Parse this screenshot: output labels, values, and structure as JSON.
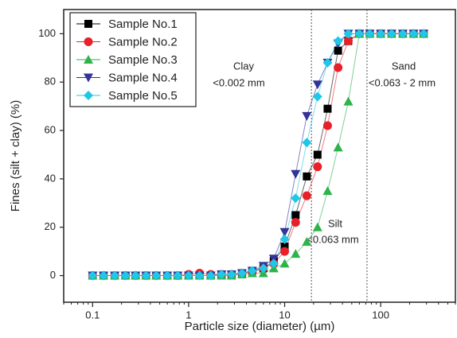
{
  "chart_data": {
    "type": "line",
    "xscale": "log",
    "xlabel": "Particle size (diameter) (µm)",
    "ylabel": "Fines (silt + clay) (%)",
    "xlim": [
      0.05,
      600
    ],
    "ylim": [
      -11,
      110
    ],
    "xticks": [
      0.1,
      1,
      10,
      100
    ],
    "yticks": [
      0,
      20,
      40,
      60,
      80,
      100
    ],
    "vlines": [
      19,
      72
    ],
    "annotations": [
      "Clay",
      "<0.002 mm",
      "Silt",
      "<0.063 mm",
      "Sand",
      "<0.063 - 2 mm"
    ],
    "legend": "upper left",
    "x": [
      0.1,
      0.13,
      0.17,
      0.22,
      0.28,
      0.36,
      0.46,
      0.6,
      0.77,
      1,
      1.3,
      1.7,
      2.2,
      2.8,
      3.6,
      4.6,
      6,
      7.7,
      10,
      13,
      17,
      22,
      28,
      36,
      46,
      60,
      77,
      100,
      130,
      170,
      220,
      280
    ],
    "series": [
      {
        "name": "Sample No.1",
        "color": "#000000",
        "marker": "square",
        "values": [
          0,
          0,
          0,
          0,
          0,
          0,
          0,
          0,
          0,
          0,
          0,
          0,
          0.5,
          0.5,
          1,
          2,
          3,
          6,
          12,
          25,
          41,
          50,
          69,
          93,
          97,
          100,
          100,
          100,
          100,
          100,
          100,
          100
        ]
      },
      {
        "name": "Sample No.2",
        "color": "#e8202a",
        "marker": "circle",
        "values": [
          0,
          0,
          0,
          0,
          0,
          0,
          0,
          0,
          0,
          0.5,
          1,
          0.5,
          0.5,
          0.5,
          1,
          1.5,
          3,
          5,
          10,
          22,
          33,
          45,
          62,
          86,
          97,
          100,
          100,
          100,
          100,
          100,
          100,
          100
        ]
      },
      {
        "name": "Sample No.3",
        "color": "#2db34a",
        "marker": "triangle",
        "values": [
          0,
          0,
          0,
          0,
          0,
          0,
          0,
          0,
          0,
          0,
          0,
          0,
          0,
          0,
          0.5,
          1,
          1,
          3,
          5,
          9,
          14,
          20,
          35,
          53,
          72,
          100,
          100,
          100,
          100,
          100,
          100,
          100
        ]
      },
      {
        "name": "Sample No.4",
        "color": "#33339a",
        "marker": "down-triangle",
        "values": [
          0,
          0,
          0,
          0,
          0,
          0,
          0,
          0,
          0,
          0,
          0,
          0,
          0.5,
          0.5,
          1,
          2,
          4,
          7,
          18,
          42,
          66,
          79,
          88,
          96,
          100,
          100,
          100,
          100,
          100,
          100,
          100,
          100
        ]
      },
      {
        "name": "Sample No.5",
        "color": "#1ec8e6",
        "marker": "diamond",
        "values": [
          0,
          0,
          0,
          0,
          0,
          0,
          0,
          0,
          0,
          0,
          0,
          0,
          0.5,
          0.5,
          1,
          2,
          3,
          5,
          15,
          32,
          55,
          74,
          88,
          97,
          100,
          100,
          100,
          100,
          100,
          100,
          100,
          100
        ]
      }
    ]
  }
}
